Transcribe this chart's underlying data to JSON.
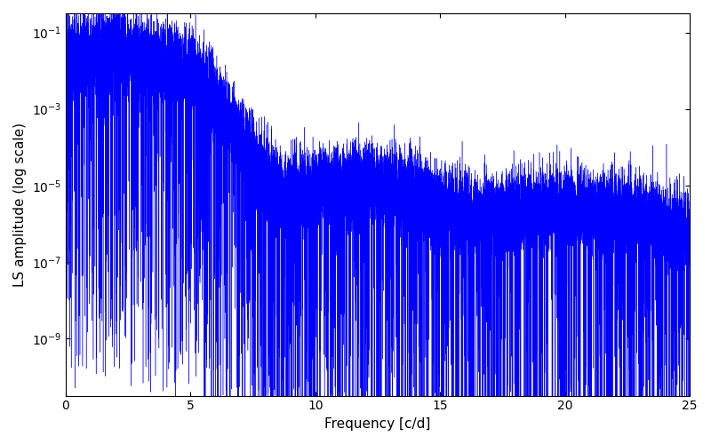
{
  "xlabel": "Frequency [c/d]",
  "ylabel": "LS amplitude (log scale)",
  "xlim": [
    0,
    25
  ],
  "ylim_log_min": -10.5,
  "ylim_log_max": -0.5,
  "line_color": "#0000FF",
  "fig_width": 8.0,
  "fig_height": 5.0,
  "dpi": 100,
  "seed": 42,
  "n_points": 20000
}
